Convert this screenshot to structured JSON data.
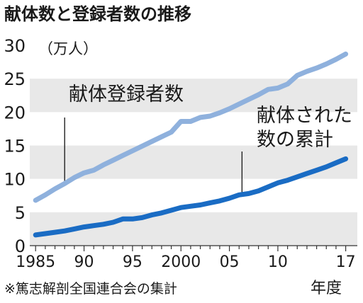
{
  "chart_data": {
    "type": "line",
    "title": "献体数と登録者数の推移",
    "unit_label": "（万人）",
    "xlabel": "年度",
    "source": "※篤志解剖全国連合会の集計",
    "x": [
      1985,
      1986,
      1987,
      1988,
      1989,
      1990,
      1991,
      1992,
      1993,
      1994,
      1995,
      1996,
      1997,
      1998,
      1999,
      2000,
      2001,
      2002,
      2003,
      2004,
      2005,
      2006,
      2007,
      2008,
      2009,
      2010,
      2011,
      2012,
      2013,
      2014,
      2015,
      2016,
      2017
    ],
    "x_tick_values": [
      1985,
      1990,
      1995,
      2000,
      2005,
      2010,
      2017
    ],
    "x_tick_labels": [
      "1985",
      "90",
      "95",
      "2000",
      "05",
      "10",
      "17"
    ],
    "y_ticks": [
      0,
      5,
      10,
      15,
      20,
      25,
      30
    ],
    "xlim": [
      1984.4,
      2018.2
    ],
    "ylim": [
      0,
      30
    ],
    "grid": "horizontal bands",
    "series": [
      {
        "name": "献体登録者数",
        "color": "#8fb1dd",
        "values": [
          6.8,
          7.6,
          8.5,
          9.3,
          10.2,
          10.9,
          11.3,
          12.1,
          12.8,
          13.5,
          14.2,
          14.9,
          15.6,
          16.3,
          17.0,
          18.6,
          18.6,
          19.2,
          19.4,
          19.9,
          20.5,
          21.2,
          21.9,
          22.6,
          23.4,
          23.6,
          24.2,
          25.5,
          26.1,
          26.6,
          27.2,
          27.9,
          28.7
        ],
        "label_lines": [
          "献体登録者数"
        ]
      },
      {
        "name": "献体された数の累計",
        "color": "#1a6cc4",
        "values": [
          1.6,
          1.8,
          2.0,
          2.2,
          2.5,
          2.8,
          3.0,
          3.2,
          3.5,
          4.0,
          4.0,
          4.2,
          4.6,
          4.9,
          5.3,
          5.7,
          5.9,
          6.1,
          6.4,
          6.7,
          7.1,
          7.6,
          7.8,
          8.2,
          8.8,
          9.4,
          9.8,
          10.3,
          10.8,
          11.3,
          11.8,
          12.4,
          13.0
        ],
        "label_lines": [
          "献体された",
          "数の累計"
        ]
      }
    ]
  }
}
